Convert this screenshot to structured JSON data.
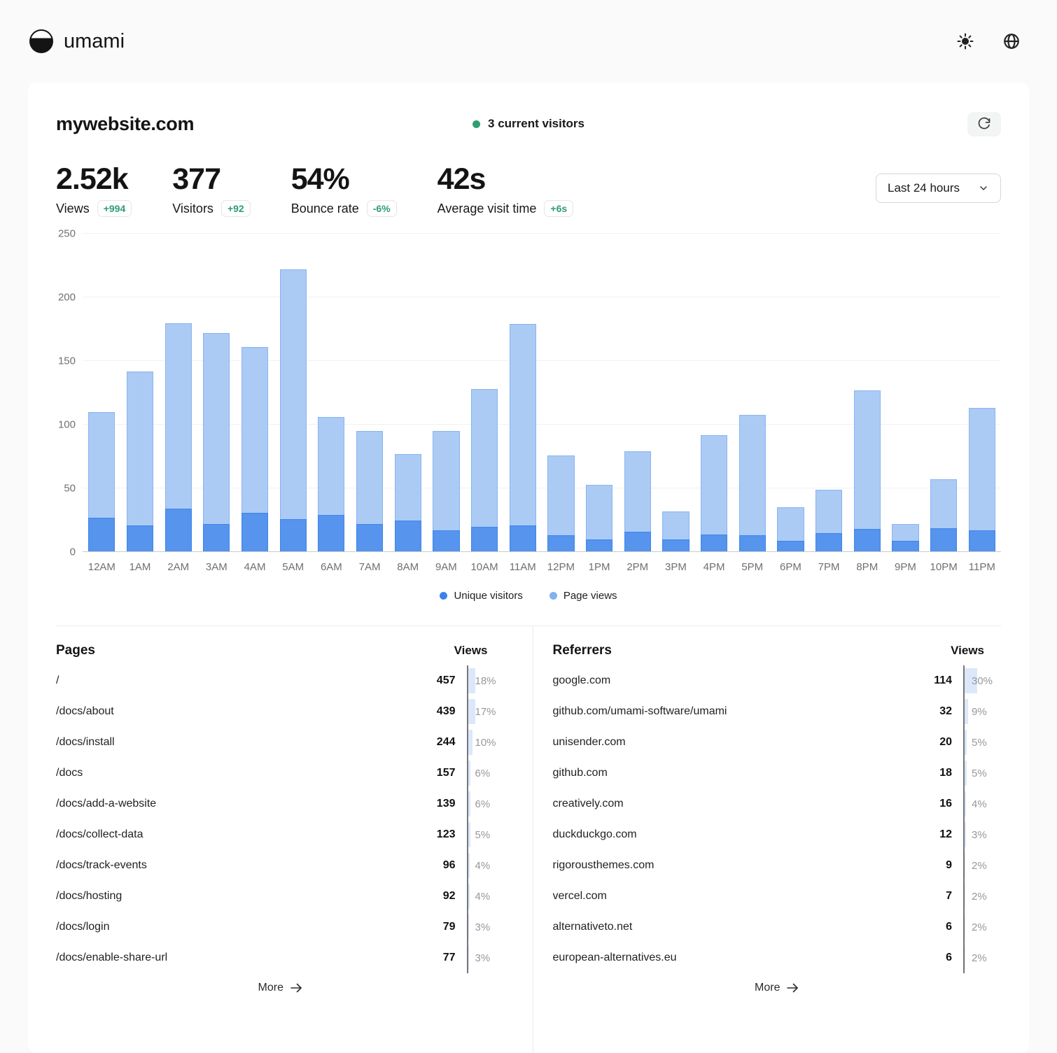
{
  "header": {
    "brand": "umami"
  },
  "site": {
    "name": "mywebsite.com",
    "current_visitors_label": "3 current visitors"
  },
  "toolbar": {
    "date_range_label": "Last 24 hours"
  },
  "theme": {
    "green": "#2e9e73",
    "blue": "#2680eb",
    "bar_pageviews_fill": "#abcbf5",
    "bar_unique_fill": "#5694ed"
  },
  "metrics": [
    {
      "value": "2.52k",
      "label": "Views",
      "change": "+994"
    },
    {
      "value": "377",
      "label": "Visitors",
      "change": "+92"
    },
    {
      "value": "54%",
      "label": "Bounce rate",
      "change": "-6%"
    },
    {
      "value": "42s",
      "label": "Average visit time",
      "change": "+6s"
    }
  ],
  "chart_data": {
    "type": "bar",
    "x": [
      "12AM",
      "1AM",
      "2AM",
      "3AM",
      "4AM",
      "5AM",
      "6AM",
      "7AM",
      "8AM",
      "9AM",
      "10AM",
      "11AM",
      "12PM",
      "1PM",
      "2PM",
      "3PM",
      "4PM",
      "5PM",
      "6PM",
      "7PM",
      "8PM",
      "9PM",
      "10PM",
      "11PM"
    ],
    "series": [
      {
        "name": "Unique visitors",
        "values": [
          27,
          21,
          34,
          22,
          31,
          26,
          29,
          22,
          25,
          17,
          20,
          21,
          13,
          10,
          16,
          10,
          14,
          13,
          9,
          15,
          18,
          9,
          19,
          17
        ]
      },
      {
        "name": "Page views",
        "values": [
          110,
          142,
          180,
          172,
          161,
          222,
          106,
          95,
          77,
          95,
          128,
          179,
          76,
          53,
          79,
          32,
          92,
          108,
          35,
          49,
          127,
          22,
          57,
          113
        ]
      }
    ],
    "title": "",
    "xlabel": "",
    "ylabel": "",
    "ylim": [
      0,
      250
    ],
    "yticks": [
      0,
      50,
      100,
      150,
      200,
      250
    ],
    "grid": "horizontal",
    "legend_position": "bottom"
  },
  "pages_table": {
    "title": "Pages",
    "views_header": "Views",
    "more_label": "More",
    "rows": [
      {
        "label": "/",
        "views": "457",
        "percent": "18%",
        "pct": 18
      },
      {
        "label": "/docs/about",
        "views": "439",
        "percent": "17%",
        "pct": 17
      },
      {
        "label": "/docs/install",
        "views": "244",
        "percent": "10%",
        "pct": 10
      },
      {
        "label": "/docs",
        "views": "157",
        "percent": "6%",
        "pct": 6
      },
      {
        "label": "/docs/add-a-website",
        "views": "139",
        "percent": "6%",
        "pct": 6
      },
      {
        "label": "/docs/collect-data",
        "views": "123",
        "percent": "5%",
        "pct": 5
      },
      {
        "label": "/docs/track-events",
        "views": "96",
        "percent": "4%",
        "pct": 4
      },
      {
        "label": "/docs/hosting",
        "views": "92",
        "percent": "4%",
        "pct": 4
      },
      {
        "label": "/docs/login",
        "views": "79",
        "percent": "3%",
        "pct": 3
      },
      {
        "label": "/docs/enable-share-url",
        "views": "77",
        "percent": "3%",
        "pct": 3
      }
    ]
  },
  "referrers_table": {
    "title": "Referrers",
    "views_header": "Views",
    "more_label": "More",
    "rows": [
      {
        "label": "google.com",
        "views": "114",
        "percent": "30%",
        "pct": 30
      },
      {
        "label": "github.com/umami-software/umami",
        "views": "32",
        "percent": "9%",
        "pct": 9
      },
      {
        "label": "unisender.com",
        "views": "20",
        "percent": "5%",
        "pct": 5
      },
      {
        "label": "github.com",
        "views": "18",
        "percent": "5%",
        "pct": 5
      },
      {
        "label": "creatively.com",
        "views": "16",
        "percent": "4%",
        "pct": 4
      },
      {
        "label": "duckduckgo.com",
        "views": "12",
        "percent": "3%",
        "pct": 3
      },
      {
        "label": "rigorousthemes.com",
        "views": "9",
        "percent": "2%",
        "pct": 2
      },
      {
        "label": "vercel.com",
        "views": "7",
        "percent": "2%",
        "pct": 2
      },
      {
        "label": "alternativeto.net",
        "views": "6",
        "percent": "2%",
        "pct": 2
      },
      {
        "label": "european-alternatives.eu",
        "views": "6",
        "percent": "2%",
        "pct": 2
      }
    ]
  }
}
